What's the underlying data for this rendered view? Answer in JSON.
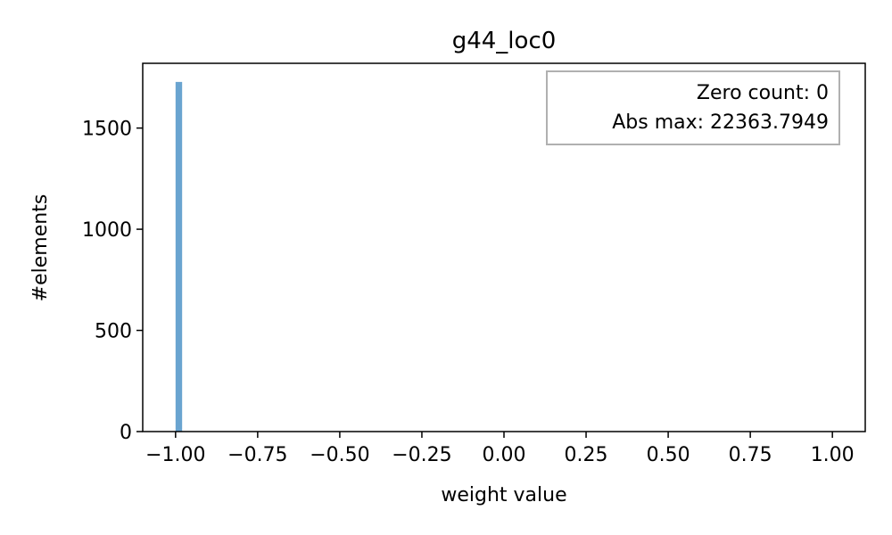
{
  "chart_data": {
    "type": "bar",
    "title": "g44_loc0",
    "xlabel": "weight value",
    "ylabel": "#elements",
    "xlim": [
      -1.1,
      1.1
    ],
    "ylim": [
      0,
      1820
    ],
    "xticks": [
      -1.0,
      -0.75,
      -0.5,
      -0.25,
      0.0,
      0.25,
      0.5,
      0.75,
      1.0
    ],
    "xtick_labels": [
      "−1.00",
      "−0.75",
      "−0.50",
      "−0.25",
      "0.00",
      "0.25",
      "0.50",
      "0.75",
      "1.00"
    ],
    "yticks": [
      0,
      500,
      1000,
      1500
    ],
    "ytick_labels": [
      "0",
      "500",
      "1000",
      "1500"
    ],
    "bars": [
      {
        "x_start": -1.0,
        "x_end": -0.98,
        "count": 1728
      }
    ],
    "bar_color": "#6aa4d0",
    "annotation": {
      "lines": [
        "Zero count: 0",
        "Abs max: 22363.7949"
      ],
      "position": "top-right"
    },
    "grid": false
  }
}
